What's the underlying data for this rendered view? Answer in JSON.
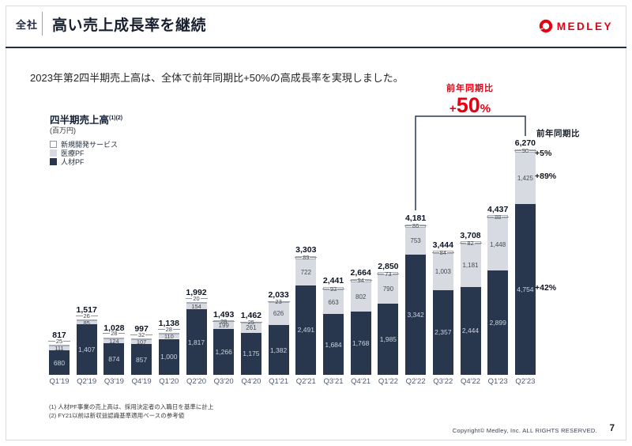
{
  "header": {
    "scope": "全社",
    "title": "高い売上成長率を継続",
    "brand": "MEDLEY"
  },
  "subtitle": "2023年第2四半期売上高は、全体で前年同期比+50%の高成長率を実現しました。",
  "chart_data": {
    "type": "bar",
    "stacked": true,
    "title": "四半期売上高",
    "title_sup": "(1)(2)",
    "unit_label": "(百万円)",
    "legend_position": "top-left",
    "ylim": [
      0,
      6600
    ],
    "categories": [
      "Q1'19",
      "Q2'19",
      "Q3'19",
      "Q4'19",
      "Q1'20",
      "Q2'20",
      "Q3'20",
      "Q4'20",
      "Q1'21",
      "Q2'21",
      "Q3'21",
      "Q4'21",
      "Q1'22",
      "Q2'22",
      "Q3'22",
      "Q4'22",
      "Q1'23",
      "Q2'23"
    ],
    "series": [
      {
        "name": "人材PF",
        "color": "#28374e",
        "values": [
          680,
          1407,
          874,
          857,
          1000,
          1817,
          1266,
          1175,
          1382,
          2491,
          1684,
          1768,
          1985,
          3342,
          2357,
          2444,
          2899,
          4754
        ]
      },
      {
        "name": "医療PF",
        "color": "#d7dbe1",
        "values": [
          111,
          85,
          124,
          107,
          110,
          154,
          199,
          261,
          626,
          722,
          663,
          802,
          790,
          753,
          1003,
          1181,
          1448,
          1425
        ]
      },
      {
        "name": "新規開発サービス",
        "color": "#ffffff",
        "values": [
          25,
          26,
          28,
          32,
          28,
          20,
          28,
          25,
          23,
          89,
          93,
          94,
          73,
          86,
          84,
          82,
          88,
          90
        ]
      }
    ],
    "totals": [
      817,
      1517,
      1028,
      997,
      1138,
      1992,
      1493,
      1462,
      2033,
      3303,
      2441,
      2664,
      2850,
      4181,
      3444,
      3708,
      4437,
      6270
    ],
    "yoy_annotation": {
      "label": "前年同期比",
      "value": "+50%",
      "from": "Q2'22",
      "to": "Q2'23"
    },
    "right_annotation": {
      "header": "前年同期比",
      "items": [
        {
          "series": "新規開発サービス",
          "value": "+5%"
        },
        {
          "series": "医療PF",
          "value": "+89%"
        },
        {
          "series": "人材PF",
          "value": "+42%"
        }
      ]
    }
  },
  "footnotes": [
    "(1) 人材PF事業の売上高は、採用決定者の入職日を基準に計上",
    "(2) FY21以前は新収益認識基準適用ベースの参考値"
  ],
  "footer": {
    "copyright": "Copyright© Medley, Inc. ALL RIGHTS RESERVED.",
    "page": "7"
  }
}
